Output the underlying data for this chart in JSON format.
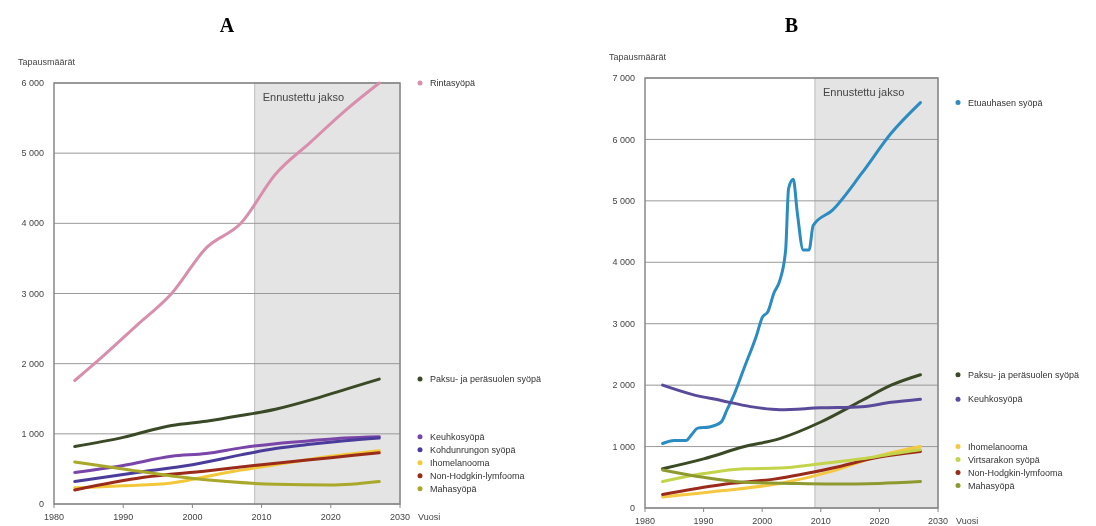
{
  "chart_data": [
    {
      "type": "line",
      "title": "A",
      "xlabel": "Vuosi",
      "ylabel": "Tapausmäärät",
      "xlim": [
        1980,
        2030
      ],
      "xticks": [
        1980,
        1990,
        2000,
        2010,
        2020,
        2030
      ],
      "ylim": [
        0,
        6000
      ],
      "yticks": [
        0,
        {
          "value": 1000,
          "label": "1 000"
        },
        {
          "value": 2000,
          "label": "2 000"
        },
        {
          "value": 3000,
          "label": "3 000"
        },
        {
          "value": 4000,
          "label": "4 000"
        },
        {
          "value": 5000,
          "label": "5 000"
        },
        {
          "value": 6000,
          "label": "6 000"
        }
      ],
      "grid": "y",
      "legend": "right",
      "bands": [
        {
          "axis": "x",
          "from": 2009,
          "to": 2030,
          "label": "Ennustettu jakso",
          "color": "#e4e4e4"
        }
      ],
      "series": [
        {
          "name": "Rintasyöpä",
          "color": "#d88fae",
          "x": [
            1983,
            1987,
            1992,
            1997,
            2002,
            2007,
            2012,
            2017,
            2022,
            2027
          ],
          "values": [
            1760,
            2100,
            2550,
            3000,
            3650,
            4000,
            4700,
            5150,
            5600,
            6000
          ]
        },
        {
          "name": "Paksu- ja peräsuolen syöpä",
          "color": "#3b4a26",
          "x": [
            1983,
            1990,
            1997,
            2002,
            2007,
            2012,
            2017,
            2022,
            2027
          ],
          "values": [
            820,
            950,
            1120,
            1180,
            1260,
            1350,
            1480,
            1630,
            1780
          ]
        },
        {
          "name": "Keuhkosyöpä",
          "color": "#7a45a8",
          "x": [
            1983,
            1990,
            1997,
            2002,
            2007,
            2012,
            2017,
            2022,
            2027
          ],
          "values": [
            450,
            550,
            680,
            720,
            800,
            860,
            900,
            940,
            960
          ]
        },
        {
          "name": "Kohdunrungon syöpä",
          "color": "#4a3c9a",
          "x": [
            1983,
            1992,
            2000,
            2007,
            2012,
            2017,
            2022,
            2027
          ],
          "values": [
            320,
            450,
            560,
            700,
            790,
            850,
            900,
            940
          ]
        },
        {
          "name": "Ihomelanooma",
          "color": "#f2c83a",
          "x": [
            1983,
            1990,
            1997,
            2005,
            2012,
            2020,
            2027
          ],
          "values": [
            230,
            260,
            300,
            450,
            560,
            680,
            760
          ]
        },
        {
          "name": "Non-Hodgkin-lymfooma",
          "color": "#9a2a1a",
          "x": [
            1983,
            1993,
            2002,
            2010,
            2020,
            2027
          ],
          "values": [
            200,
            380,
            470,
            560,
            660,
            730
          ]
        },
        {
          "name": "Mahasyöpä",
          "color": "#a9a82a",
          "x": [
            1983,
            1990,
            1997,
            2005,
            2012,
            2020,
            2027
          ],
          "values": [
            600,
            500,
            400,
            320,
            280,
            270,
            320
          ]
        }
      ]
    },
    {
      "type": "line",
      "title": "B",
      "xlabel": "Vuosi",
      "ylabel": "Tapausmäärät",
      "xlim": [
        1980,
        2030
      ],
      "xticks": [
        1980,
        1990,
        2000,
        2010,
        2020,
        2030
      ],
      "ylim": [
        0,
        7000
      ],
      "yticks": [
        0,
        {
          "value": 1000,
          "label": "1 000"
        },
        {
          "value": 2000,
          "label": "2 000"
        },
        {
          "value": 3000,
          "label": "3 000"
        },
        {
          "value": 4000,
          "label": "4 000"
        },
        {
          "value": 5000,
          "label": "5 000"
        },
        {
          "value": 6000,
          "label": "6 000"
        },
        {
          "value": 7000,
          "label": "7 000"
        }
      ],
      "grid": "y",
      "legend": "right",
      "bands": [
        {
          "axis": "x",
          "from": 2009,
          "to": 2030,
          "label": "Ennustettu jakso",
          "color": "#e4e4e4"
        }
      ],
      "series": [
        {
          "name": "Etuauhasen syöpä",
          "color": "#2a8cc0",
          "x": [
            1983,
            1985,
            1987,
            1988,
            1989,
            1991,
            1993,
            1994,
            1995,
            1997,
            1999,
            2000,
            2001,
            2002,
            2003,
            2004,
            2004.5,
            2005.3,
            2006,
            2007,
            2008,
            2008.7,
            2012,
            2017,
            2022,
            2027
          ],
          "values": [
            1050,
            1100,
            1100,
            1200,
            1300,
            1320,
            1400,
            1600,
            1800,
            2300,
            2800,
            3100,
            3200,
            3500,
            3700,
            4200,
            5200,
            5350,
            4800,
            4200,
            4200,
            4600,
            4850,
            5450,
            6100,
            6600
          ]
        },
        {
          "name": "Paksu- ja peräsuolen syöpä",
          "color": "#3b4a26",
          "x": [
            1983,
            1990,
            1997,
            2003,
            2010,
            2017,
            2022,
            2027
          ],
          "values": [
            640,
            800,
            1000,
            1130,
            1400,
            1750,
            2000,
            2170
          ]
        },
        {
          "name": "Keuhkosyöpä",
          "color": "#5a4a9a",
          "x": [
            1983,
            1988,
            1993,
            1998,
            2003,
            2010,
            2017,
            2022,
            2027
          ],
          "values": [
            2000,
            1850,
            1750,
            1650,
            1600,
            1630,
            1650,
            1720,
            1770
          ]
        },
        {
          "name": "Ihomelanooma",
          "color": "#f5c842",
          "x": [
            1983,
            1993,
            2003,
            2012,
            2020,
            2027
          ],
          "values": [
            180,
            280,
            400,
            600,
            850,
            1000
          ]
        },
        {
          "name": "Non-Hodgkin-lymfooma",
          "color": "#9a2a1a",
          "x": [
            1983,
            1993,
            2002,
            2012,
            2020,
            2027
          ],
          "values": [
            220,
            380,
            470,
            650,
            830,
            920
          ]
        },
        {
          "name": "Virtsarakon syöpä",
          "color": "#c4d44a",
          "x": [
            1983,
            1990,
            1997,
            2003,
            2010,
            2017,
            2022,
            2027
          ],
          "values": [
            430,
            560,
            640,
            650,
            720,
            800,
            880,
            950
          ]
        },
        {
          "name": "Mahasyöpä",
          "color": "#8e9a30",
          "x": [
            1983,
            1990,
            1997,
            2005,
            2012,
            2020,
            2027
          ],
          "values": [
            620,
            500,
            420,
            400,
            390,
            400,
            430
          ]
        }
      ]
    }
  ]
}
